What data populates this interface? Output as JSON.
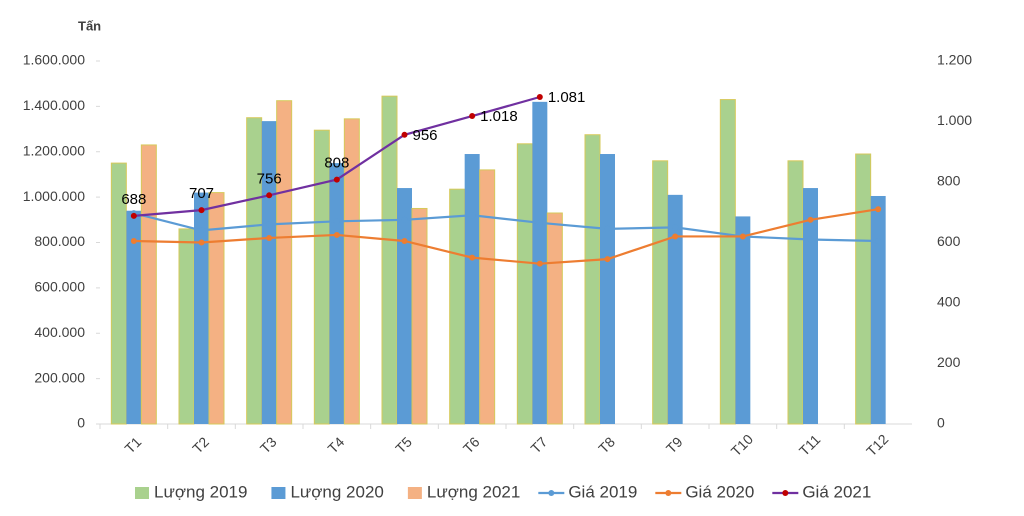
{
  "chart_data": {
    "type": "bar-line",
    "y_label": "Tấn",
    "categories": [
      "T1",
      "T2",
      "T3",
      "T4",
      "T5",
      "T6",
      "T7",
      "T8",
      "T9",
      "T10",
      "T11",
      "T12"
    ],
    "series": [
      {
        "name": "Lượng 2019",
        "type": "bar",
        "color": "#a9d18e",
        "values": [
          1150000,
          860000,
          1350000,
          1295000,
          1445000,
          1035000,
          1235000,
          1275000,
          1160000,
          1430000,
          1160000,
          1190000
        ]
      },
      {
        "name": "Lượng 2020",
        "type": "bar",
        "color": "#5b9bd5",
        "values": [
          940000,
          1020000,
          1335000,
          1150000,
          1040000,
          1190000,
          1420000,
          1190000,
          1010000,
          915000,
          1040000,
          1005000
        ]
      },
      {
        "name": "Lượng 2021",
        "type": "bar",
        "color": "#f4b183",
        "values": [
          1230000,
          1020000,
          1425000,
          1345000,
          950000,
          1120000,
          930000,
          null,
          null,
          null,
          null,
          null
        ]
      },
      {
        "name": "Giá 2019",
        "type": "line",
        "axis": "y2",
        "color": "#5b9bd5",
        "values": [
          697,
          640,
          660,
          670,
          675,
          690,
          665,
          645,
          650,
          620,
          610,
          605
        ]
      },
      {
        "name": "Giá 2020",
        "type": "line",
        "axis": "y2",
        "color": "#ed7d31",
        "values": [
          605,
          600,
          615,
          625,
          605,
          550,
          530,
          545,
          620,
          620,
          675,
          710
        ]
      },
      {
        "name": "Giá 2021",
        "type": "line",
        "axis": "y2",
        "color": "#7030a0",
        "marker_color": "#c00000",
        "values": [
          688,
          707,
          756,
          808,
          956,
          1018,
          1081,
          null,
          null,
          null,
          null,
          null
        ],
        "value_labels": [
          "688",
          "707",
          "756",
          "808",
          "956",
          "1.018",
          "1.081",
          null,
          null,
          null,
          null,
          null
        ]
      }
    ],
    "ylim": [
      0,
      1600000
    ],
    "yticks": [
      0,
      {
        "value": 200000,
        "label": "200.000"
      },
      {
        "value": 400000,
        "label": "400.000"
      },
      {
        "value": 600000,
        "label": "600.000"
      },
      {
        "value": 800000,
        "label": "800.000"
      },
      {
        "value": 1000000,
        "label": "1.000.000"
      },
      {
        "value": 1200000,
        "label": "1.200.000"
      },
      {
        "value": 1400000,
        "label": "1.400.000"
      },
      {
        "value": 1600000,
        "label": "1.600.000"
      }
    ],
    "y2lim": [
      0,
      1200
    ],
    "y2ticks": [
      0,
      200,
      400,
      600,
      800,
      {
        "value": 1000,
        "label": "1.000"
      },
      {
        "value": 1200,
        "label": "1.200"
      }
    ],
    "legend": "bottom"
  }
}
